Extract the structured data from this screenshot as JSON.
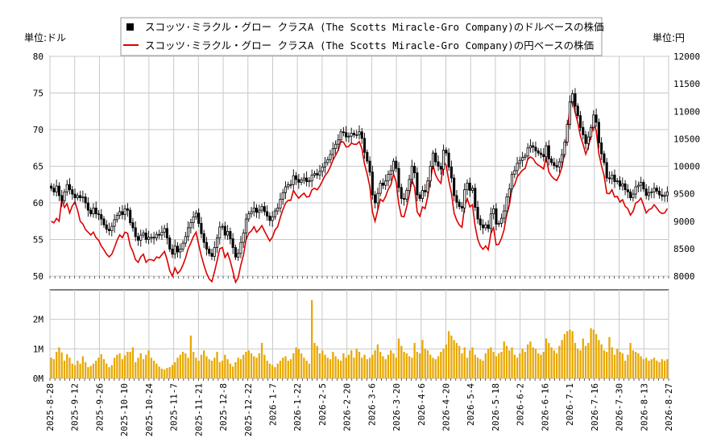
{
  "chart_data": {
    "type": "candlestick",
    "grid": true,
    "legend_position": "top-center",
    "legend": [
      {
        "label": "スコッツ·ミラクル・グロー クラスA (The Scotts Miracle-Gro Company)のドルベースの株価",
        "color": "#000000",
        "marker": "square"
      },
      {
        "label": "スコッツ·ミラクル・グロー クラスA (The Scotts Miracle-Gro Company)の円ベースの株価",
        "color": "#dd0000",
        "marker": "line"
      }
    ],
    "left_axis": {
      "label": "単位:ドル",
      "min": 50,
      "max": 80,
      "ticks": [
        "80",
        "75",
        "70",
        "65",
        "60",
        "55",
        "50"
      ]
    },
    "right_axis": {
      "label": "単位:円",
      "min": 8000,
      "max": 12000,
      "ticks": [
        "12000",
        "11500",
        "11000",
        "10500",
        "10000",
        "9500",
        "9000",
        "8500",
        "8000"
      ]
    },
    "volume_axis": {
      "min": 0,
      "max": 3000000,
      "ticks": [
        "2M",
        "1M",
        "0M"
      ],
      "color": "#e8a800"
    },
    "x_labels": [
      "2025-8-28",
      "2025-9-12",
      "2025-9-26",
      "2025-10-10",
      "2025-10-24",
      "2025-11-7",
      "2025-11-21",
      "2025-12-8",
      "2025-12-22",
      "2026-1-7",
      "2026-1-22",
      "2026-2-5",
      "2026-2-20",
      "2026-3-6",
      "2026-3-20",
      "2026-4-6",
      "2026-4-20",
      "2026-5-4",
      "2026-5-18",
      "2026-6-2",
      "2026-6-16",
      "2026-7-1",
      "2026-7-16",
      "2026-7-30",
      "2026-8-13",
      "2026-8-27"
    ],
    "close_usd": [
      62.0,
      61.5,
      62.3,
      61.0,
      60.3,
      61.5,
      62.5,
      61.8,
      61.2,
      60.7,
      61.0,
      60.7,
      60.8,
      60.0,
      59.0,
      58.5,
      59.3,
      58.5,
      58.4,
      57.8,
      57.0,
      56.4,
      56.2,
      56.8,
      57.7,
      58.3,
      58.8,
      58.4,
      59.2,
      59.0,
      57.3,
      56.6,
      55.4,
      54.9,
      55.6,
      55.9,
      55.0,
      55.3,
      55.3,
      55.2,
      55.7,
      55.6,
      56.0,
      56.5,
      55.2,
      53.7,
      53.0,
      54.1,
      53.3,
      53.7,
      54.5,
      55.4,
      56.6,
      57.3,
      58.1,
      58.6,
      57.2,
      55.8,
      54.6,
      53.7,
      53.1,
      52.7,
      53.9,
      55.2,
      56.7,
      56.8,
      55.6,
      56.1,
      55.1,
      53.9,
      52.6,
      53.1,
      54.6,
      55.9,
      57.8,
      58.5,
      58.8,
      59.3,
      58.7,
      59.0,
      59.5,
      58.8,
      58.2,
      57.6,
      58.1,
      58.9,
      59.3,
      60.5,
      61.4,
      62.2,
      62.5,
      62.5,
      63.7,
      63.2,
      62.8,
      63.1,
      63.4,
      62.9,
      63.0,
      63.8,
      64.0,
      63.8,
      64.3,
      64.9,
      65.5,
      65.9,
      66.6,
      67.4,
      68.0,
      68.6,
      69.7,
      69.6,
      69.0,
      69.1,
      69.5,
      69.3,
      69.3,
      69.7,
      68.8,
      66.9,
      65.7,
      64.2,
      61.1,
      60.0,
      61.3,
      62.7,
      62.4,
      63.0,
      63.9,
      64.4,
      65.7,
      64.7,
      62.1,
      60.6,
      60.5,
      61.7,
      63.2,
      65.0,
      64.1,
      61.1,
      60.6,
      61.7,
      61.5,
      63.0,
      65.0,
      66.8,
      65.6,
      65.0,
      64.6,
      67.2,
      66.8,
      64.9,
      63.4,
      61.0,
      60.1,
      59.5,
      59.3,
      61.8,
      62.7,
      61.7,
      62.0,
      59.4,
      57.8,
      57.0,
      56.6,
      57.0,
      56.5,
      58.5,
      59.2,
      57.1,
      57.2,
      57.9,
      58.9,
      60.8,
      61.9,
      63.9,
      64.4,
      65.4,
      65.8,
      66.2,
      66.4,
      67.5,
      67.8,
      67.6,
      67.1,
      66.8,
      66.6,
      66.3,
      67.8,
      66.0,
      65.5,
      65.1,
      64.9,
      65.6,
      66.6,
      68.3,
      70.7,
      73.8,
      74.9,
      73.2,
      71.9,
      70.3,
      69.3,
      68.1,
      69.0,
      70.3,
      72.0,
      71.0,
      68.2,
      66.7,
      65.5,
      63.4,
      63.3,
      63.8,
      62.9,
      63.0,
      62.3,
      62.6,
      61.8,
      61.5,
      60.7,
      61.2,
      62.2,
      62.4,
      62.8,
      61.9,
      61.0,
      61.4,
      61.5,
      62.0,
      61.6,
      61.1,
      60.9,
      61.0,
      61.5
    ],
    "close_jpy": [
      9000,
      8970,
      9050,
      9000,
      9400,
      9250,
      9320,
      9150,
      9280,
      9350,
      9200,
      9000,
      8950,
      8850,
      8800,
      8750,
      8800,
      8700,
      8650,
      8550,
      8480,
      8400,
      8350,
      8400,
      8520,
      8650,
      8750,
      8700,
      8800,
      8780,
      8550,
      8450,
      8300,
      8250,
      8350,
      8400,
      8250,
      8300,
      8300,
      8280,
      8350,
      8330,
      8390,
      8450,
      8300,
      8100,
      8000,
      8150,
      8050,
      8100,
      8200,
      8330,
      8500,
      8600,
      8720,
      8800,
      8580,
      8370,
      8200,
      8050,
      7950,
      7900,
      8080,
      8280,
      8500,
      8520,
      8340,
      8420,
      8270,
      8090,
      7890,
      7970,
      8200,
      8380,
      8670,
      8780,
      8820,
      8900,
      8800,
      8850,
      8920,
      8820,
      8730,
      8640,
      8710,
      8840,
      8900,
      9070,
      9210,
      9330,
      9380,
      9380,
      9560,
      9480,
      9420,
      9470,
      9510,
      9440,
      9450,
      9570,
      9600,
      9570,
      9640,
      9730,
      9830,
      9890,
      9990,
      10110,
      10200,
      10290,
      10450,
      10440,
      10350,
      10360,
      10420,
      10400,
      10400,
      10450,
      10320,
      10040,
      9860,
      9630,
      9170,
      9000,
      9200,
      9400,
      9360,
      9450,
      9580,
      9660,
      9860,
      9710,
      9320,
      9090,
      9080,
      9260,
      9480,
      9750,
      9620,
      9170,
      9090,
      9260,
      9230,
      9450,
      9750,
      10020,
      9840,
      9750,
      9690,
      10080,
      10020,
      9740,
      9510,
      9150,
      9020,
      8930,
      8890,
      9270,
      9410,
      9260,
      9300,
      8910,
      8670,
      8550,
      8490,
      8550,
      8480,
      8780,
      8880,
      8570,
      8580,
      8690,
      8840,
      9120,
      9290,
      9590,
      9660,
      9810,
      9870,
      9930,
      9960,
      10130,
      10170,
      10140,
      10060,
      10020,
      9990,
      9950,
      10170,
      9900,
      9820,
      9770,
      9740,
      9840,
      9990,
      10250,
      10610,
      11070,
      11240,
      10980,
      10790,
      10550,
      10400,
      10220,
      10350,
      10550,
      10800,
      10650,
      10230,
      10010,
      9830,
      9510,
      9500,
      9570,
      9440,
      9450,
      9350,
      9390,
      9270,
      9230,
      9110,
      9180,
      9330,
      9360,
      9420,
      9290,
      9150,
      9210,
      9230,
      9300,
      9240,
      9170,
      9140,
      9150,
      9230
    ],
    "volume": [
      700000,
      650000,
      900000,
      1050000,
      880000,
      600000,
      820000,
      700000,
      500000,
      450000,
      600000,
      500000,
      750000,
      550000,
      380000,
      420000,
      500000,
      600000,
      700000,
      820000,
      650000,
      500000,
      380000,
      450000,
      700000,
      800000,
      850000,
      650000,
      780000,
      900000,
      900000,
      1050000,
      550000,
      700000,
      850000,
      650000,
      800000,
      950000,
      700000,
      600000,
      500000,
      400000,
      330000,
      300000,
      350000,
      380000,
      450000,
      550000,
      700000,
      800000,
      900000,
      850000,
      700000,
      1450000,
      900000,
      700000,
      600000,
      800000,
      950000,
      750000,
      650000,
      600000,
      700000,
      900000,
      550000,
      600000,
      800000,
      650000,
      500000,
      400000,
      550000,
      700000,
      650000,
      800000,
      900000,
      950000,
      850000,
      750000,
      700000,
      850000,
      1200000,
      800000,
      600000,
      500000,
      450000,
      380000,
      500000,
      600000,
      700000,
      750000,
      600000,
      650000,
      850000,
      1050000,
      1000000,
      850000,
      700000,
      600000,
      500000,
      2650000,
      1200000,
      1100000,
      850000,
      950000,
      800000,
      700000,
      650000,
      900000,
      750000,
      650000,
      600000,
      850000,
      700000,
      800000,
      950000,
      700000,
      1000000,
      900000,
      700000,
      800000,
      650000,
      700000,
      800000,
      950000,
      1150000,
      900000,
      750000,
      650000,
      800000,
      950000,
      850000,
      700000,
      1350000,
      1100000,
      900000,
      850000,
      750000,
      700000,
      1200000,
      900000,
      850000,
      1300000,
      1000000,
      950000,
      800000,
      700000,
      650000,
      750000,
      900000,
      1000000,
      1150000,
      1600000,
      1450000,
      1300000,
      1200000,
      1100000,
      850000,
      1050000,
      700000,
      950000,
      1050000,
      800000,
      700000,
      650000,
      600000,
      850000,
      1000000,
      1050000,
      900000,
      750000,
      850000,
      900000,
      1250000,
      1100000,
      950000,
      1050000,
      800000,
      700000,
      850000,
      1000000,
      900000,
      1150000,
      1250000,
      1050000,
      1000000,
      850000,
      800000,
      900000,
      1350000,
      1200000,
      1050000,
      950000,
      850000,
      1100000,
      1300000,
      1500000,
      1600000,
      1650000,
      1600000,
      1200000,
      1000000,
      950000,
      1350000,
      1100000,
      1200000,
      1700000,
      1650000,
      1500000,
      1300000,
      1150000,
      950000,
      900000,
      1400000,
      1050000,
      800000,
      1000000,
      900000,
      850000,
      600000,
      800000,
      1200000,
      950000,
      900000,
      850000,
      750000,
      650000,
      700000,
      600000,
      650000,
      700000,
      600000,
      550000,
      650000,
      600000,
      650000
    ]
  }
}
